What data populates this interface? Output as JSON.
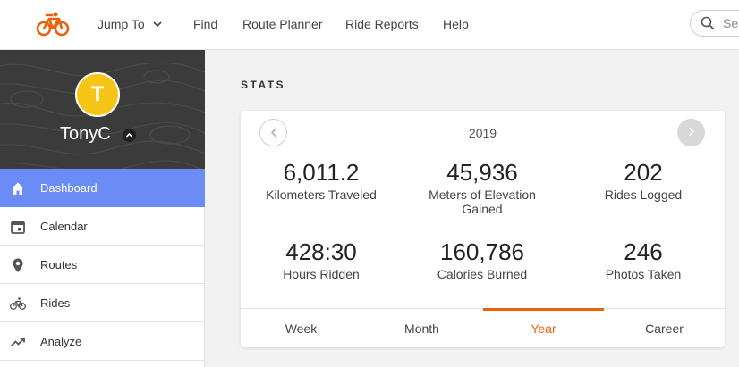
{
  "nav": {
    "jump_to": "Jump To",
    "find": "Find",
    "route_planner": "Route Planner",
    "ride_reports": "Ride Reports",
    "help": "Help",
    "search_placeholder": "Sea"
  },
  "profile": {
    "initial": "T",
    "username": "TonyC",
    "avatar_color": "#f5c518"
  },
  "sidebar": {
    "items": [
      {
        "label": "Dashboard",
        "icon": "home-icon",
        "active": true
      },
      {
        "label": "Calendar",
        "icon": "calendar-icon"
      },
      {
        "label": "Routes",
        "icon": "map-pin-icon"
      },
      {
        "label": "Rides",
        "icon": "bicycle-icon"
      },
      {
        "label": "Analyze",
        "icon": "trending-up-icon"
      }
    ]
  },
  "stats": {
    "section_title": "STATS",
    "year": "2019",
    "items": [
      {
        "value": "6,011.2",
        "label": "Kilometers Traveled"
      },
      {
        "value": "45,936",
        "label": "Meters of Elevation Gained"
      },
      {
        "value": "202",
        "label": "Rides Logged"
      },
      {
        "value": "428:30",
        "label": "Hours Ridden"
      },
      {
        "value": "160,786",
        "label": "Calories Burned"
      },
      {
        "value": "246",
        "label": "Photos Taken"
      }
    ],
    "tabs": [
      {
        "label": "Week"
      },
      {
        "label": "Month"
      },
      {
        "label": "Year",
        "active": true
      },
      {
        "label": "Career"
      }
    ]
  },
  "colors": {
    "accent": "#e8620c",
    "sidebar_active": "#6b8cf5",
    "profile_bg": "#3b3b3b"
  }
}
